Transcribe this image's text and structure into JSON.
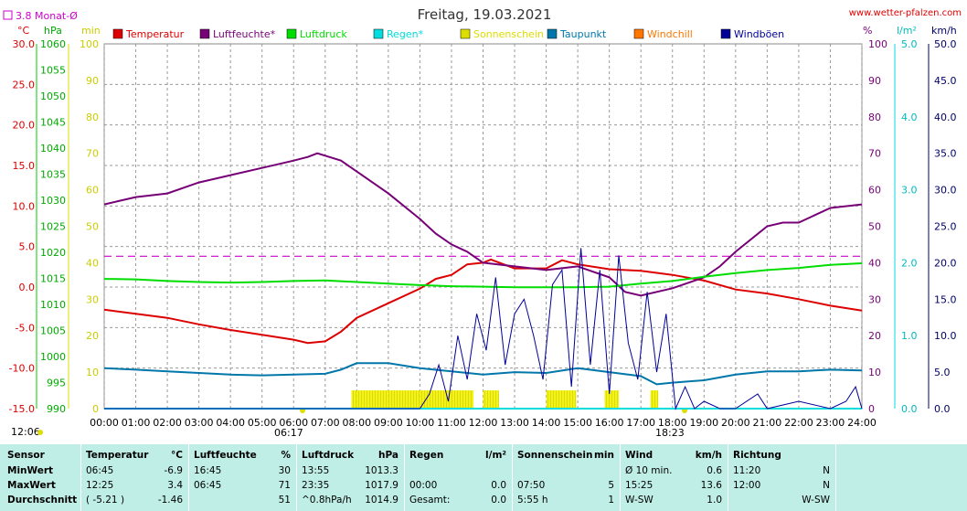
{
  "header": {
    "title": "Freitag, 19.03.2021",
    "website": "www.wetter-pfalzen.com",
    "monthly_avg_label": "3.8 Monat-Ø"
  },
  "units": {
    "temp": "°C",
    "pressure": "hPa",
    "sun": "min",
    "humidity": "%",
    "rain": "l/m²",
    "wind": "km/h"
  },
  "legend": [
    {
      "name": "Temperatur",
      "color": "#dd0000"
    },
    {
      "name": "Luftfeuchte*",
      "color": "#770077"
    },
    {
      "name": "Luftdruck",
      "color": "#00dd00"
    },
    {
      "name": "Regen*",
      "color": "#00dddd"
    },
    {
      "name": "Sonnenschein",
      "color": "#dddd00"
    },
    {
      "name": "Taupunkt",
      "color": "#0077aa"
    },
    {
      "name": "Windchill",
      "color": "#ff7700"
    },
    {
      "name": "Windböen",
      "color": "#000099"
    }
  ],
  "chart_data": {
    "type": "line",
    "x_ticks": [
      "00:00",
      "01:00",
      "02:00",
      "03:00",
      "04:00",
      "05:00",
      "06:00",
      "07:00",
      "08:00",
      "09:00",
      "10:00",
      "11:00",
      "12:00",
      "13:00",
      "14:00",
      "15:00",
      "16:00",
      "17:00",
      "18:00",
      "19:00",
      "20:00",
      "21:00",
      "22:00",
      "23:00",
      "24:00"
    ],
    "axes": {
      "temperature": {
        "min": -15,
        "max": 30,
        "ticks": [
          "-15.0",
          "-10.0",
          "-5.0",
          "0.0",
          "5.0",
          "10.0",
          "15.0",
          "20.0",
          "25.0",
          "30.0"
        ]
      },
      "pressure": {
        "min": 990,
        "max": 1060,
        "ticks": [
          "990",
          "995",
          "1000",
          "1005",
          "1010",
          "1015",
          "1020",
          "1025",
          "1030",
          "1035",
          "1040",
          "1045",
          "1050",
          "1055",
          "1060"
        ]
      },
      "sunshine": {
        "min": 0,
        "max": 100,
        "ticks": [
          "0",
          "10",
          "20",
          "30",
          "40",
          "50",
          "60",
          "70",
          "80",
          "90",
          "100"
        ]
      },
      "humidity": {
        "min": 0,
        "max": 100,
        "ticks": [
          "0",
          "10",
          "20",
          "30",
          "40",
          "50",
          "60",
          "70",
          "80",
          "90",
          "100"
        ]
      },
      "rain": {
        "min": 0,
        "max": 5,
        "ticks": [
          "0.0",
          "1.0",
          "2.0",
          "3.0",
          "4.0",
          "5.0"
        ]
      },
      "wind": {
        "min": 0,
        "max": 50,
        "ticks": [
          "0.0",
          "5.0",
          "10.0",
          "15.0",
          "20.0",
          "25.0",
          "30.0",
          "35.0",
          "40.0",
          "45.0",
          "50.0"
        ]
      }
    },
    "monthly_avg_temp": 3.8,
    "sunrise": "06:17",
    "sunset": "18:23",
    "sun_peak_time": "12:06",
    "series": [
      {
        "name": "Temperatur",
        "axis": "temperature",
        "color": "#dd0000",
        "x": [
          0,
          1,
          2,
          3,
          4,
          5,
          6,
          6.45,
          7,
          7.5,
          8,
          9,
          10,
          10.5,
          11,
          11.5,
          12,
          12.25,
          13,
          14,
          14.5,
          15,
          16,
          17,
          18,
          19,
          20,
          21,
          22,
          23,
          24
        ],
        "y": [
          -2.8,
          -3.3,
          -3.8,
          -4.6,
          -5.3,
          -5.9,
          -6.5,
          -6.9,
          -6.7,
          -5.5,
          -3.8,
          -2.0,
          -0.2,
          1.0,
          1.5,
          2.8,
          3.0,
          3.4,
          2.3,
          2.3,
          3.3,
          2.8,
          2.2,
          2.0,
          1.5,
          0.8,
          -0.3,
          -0.8,
          -1.5,
          -2.3,
          -2.9
        ]
      },
      {
        "name": "Luftfeuchte*",
        "axis": "humidity",
        "color": "#770077",
        "x": [
          0,
          1,
          2,
          3,
          4,
          5,
          6,
          6.45,
          6.75,
          7.5,
          8,
          9,
          10,
          10.5,
          11,
          11.5,
          12,
          13,
          14,
          15,
          16,
          16.5,
          17,
          18,
          19,
          19.5,
          20,
          21,
          21.5,
          22,
          23,
          24
        ],
        "y": [
          56,
          58,
          59,
          62,
          64,
          66,
          68,
          69,
          70,
          68,
          65,
          59,
          52,
          48,
          45,
          43,
          40,
          39,
          38,
          39,
          36,
          32,
          31,
          33,
          36,
          39,
          43,
          50,
          51,
          51,
          55,
          56
        ]
      },
      {
        "name": "Luftdruck",
        "axis": "pressure",
        "color": "#00dd00",
        "x": [
          0,
          1,
          2,
          3,
          4,
          5,
          6,
          7,
          8,
          9,
          10,
          11,
          12,
          13,
          14,
          15,
          16,
          17,
          18,
          19,
          20,
          21,
          22,
          23,
          24
        ],
        "y": [
          1014.9,
          1014.8,
          1014.5,
          1014.3,
          1014.2,
          1014.3,
          1014.5,
          1014.6,
          1014.3,
          1014.0,
          1013.7,
          1013.5,
          1013.4,
          1013.3,
          1013.3,
          1013.3,
          1013.4,
          1014.0,
          1014.5,
          1015.3,
          1016.0,
          1016.6,
          1017.0,
          1017.6,
          1017.9
        ]
      },
      {
        "name": "Taupunkt",
        "axis": "temperature",
        "color": "#0077aa",
        "x": [
          0,
          1,
          2,
          3,
          4,
          5,
          6,
          7,
          7.5,
          8,
          9,
          10,
          11,
          12,
          13,
          14,
          15,
          16,
          17,
          17.5,
          18,
          19,
          20,
          21,
          22,
          23,
          24
        ],
        "y": [
          -10.0,
          -10.2,
          -10.4,
          -10.6,
          -10.8,
          -10.9,
          -10.8,
          -10.7,
          -10.2,
          -9.4,
          -9.4,
          -10.0,
          -10.4,
          -10.8,
          -10.5,
          -10.6,
          -10.0,
          -10.5,
          -11.0,
          -12.0,
          -11.8,
          -11.5,
          -10.8,
          -10.4,
          -10.4,
          -10.2,
          -10.3
        ]
      },
      {
        "name": "Windböen",
        "axis": "wind",
        "color": "#000099",
        "x": [
          0,
          10,
          10.3,
          10.6,
          10.9,
          11.2,
          11.5,
          11.8,
          12.1,
          12.4,
          12.7,
          13.0,
          13.3,
          13.6,
          13.9,
          14.2,
          14.5,
          14.8,
          15.1,
          15.4,
          15.7,
          16.0,
          16.3,
          16.6,
          16.9,
          17.2,
          17.5,
          17.8,
          18.1,
          18.4,
          18.7,
          19.0,
          19.5,
          20,
          20.7,
          21,
          22,
          23,
          23.5,
          23.8,
          24
        ],
        "y": [
          0,
          0,
          2,
          6,
          1,
          10,
          4,
          13,
          8,
          18,
          6,
          13,
          15,
          10,
          4,
          17,
          19,
          3,
          22,
          6,
          19,
          2,
          21,
          9,
          4,
          16,
          5,
          13,
          0,
          3,
          0,
          1,
          0,
          0,
          2,
          0,
          1,
          0,
          1,
          3,
          0
        ]
      }
    ],
    "sunshine_blocks": [
      [
        7.83,
        11.7
      ],
      [
        12.0,
        12.5
      ],
      [
        14.0,
        14.95
      ],
      [
        15.85,
        16.3
      ],
      [
        17.3,
        17.55
      ]
    ]
  },
  "summary": {
    "sensor": {
      "header": "Sensor",
      "rows": [
        "MinWert",
        "MaxWert",
        "Durchschnitt"
      ]
    },
    "temperatur": {
      "header": "Temperatur",
      "unit": "°C",
      "times": [
        "06:45",
        "12:25",
        "( -5.21 )"
      ],
      "values": [
        "-6.9",
        "3.4",
        "-1.46"
      ]
    },
    "luftfeuchte": {
      "header": "Luftfeuchte",
      "unit": "%",
      "times": [
        "16:45",
        "06:45",
        ""
      ],
      "values": [
        "30",
        "71",
        "51"
      ]
    },
    "luftdruck": {
      "header": "Luftdruck",
      "unit": "hPa",
      "times": [
        "13:55",
        "23:35",
        "^0.8hPa/h"
      ],
      "values": [
        "1013.3",
        "1017.9",
        "1014.9"
      ]
    },
    "regen": {
      "header": "Regen",
      "unit": "l/m²",
      "times": [
        "",
        "00:00",
        "Gesamt:"
      ],
      "values": [
        "",
        "0.0",
        "0.0"
      ]
    },
    "sonnenschein": {
      "header": "Sonnenschein",
      "unit": "min",
      "times": [
        "",
        "07:50",
        "5:55 h"
      ],
      "values": [
        "",
        "5",
        "1"
      ]
    },
    "wind": {
      "header": "Wind",
      "unit": "km/h",
      "times": [
        "Ø 10 min.",
        "15:25",
        "W-SW"
      ],
      "values": [
        "0.6",
        "13.6",
        "1.0"
      ]
    },
    "richtung": {
      "header": "Richtung",
      "times": [
        "11:20",
        "12:00",
        ""
      ],
      "values": [
        "N",
        "N",
        "W-SW"
      ]
    }
  }
}
